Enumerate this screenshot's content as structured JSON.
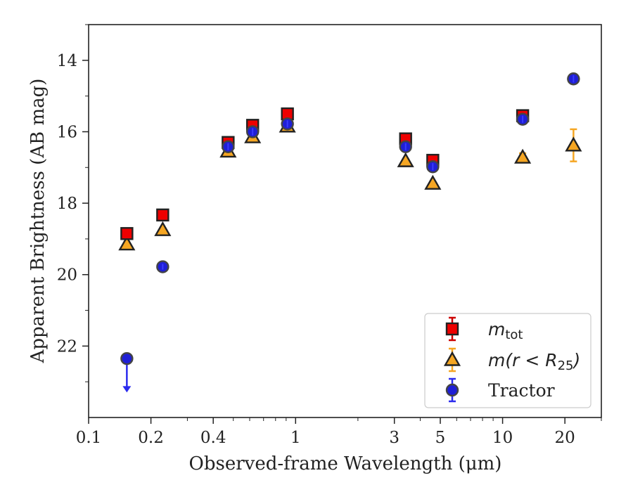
{
  "chart_data": {
    "type": "scatter",
    "xscale": "log",
    "yaxis_inverted": true,
    "xlim": [
      0.1,
      30
    ],
    "ylim": [
      24.0,
      13.0
    ],
    "xlabel": "Observed-frame Wavelength (μm)",
    "ylabel": "Apparent Brightness (AB mag)",
    "x_ticks": [
      {
        "value": 0.1,
        "label": "0.1"
      },
      {
        "value": 0.2,
        "label": "0.2"
      },
      {
        "value": 0.4,
        "label": "0.4"
      },
      {
        "value": 1,
        "label": "1"
      },
      {
        "value": 3,
        "label": "3"
      },
      {
        "value": 5,
        "label": "5"
      },
      {
        "value": 10,
        "label": "10"
      },
      {
        "value": 20,
        "label": "20"
      }
    ],
    "x_minor_ticks": [
      0.3,
      0.5,
      0.6,
      0.7,
      0.8,
      0.9,
      2,
      4,
      6,
      7,
      8,
      9,
      30
    ],
    "y_ticks": [
      {
        "value": 14,
        "label": "14"
      },
      {
        "value": 16,
        "label": "16"
      },
      {
        "value": 18,
        "label": "18"
      },
      {
        "value": 20,
        "label": "20"
      },
      {
        "value": 22,
        "label": "22"
      }
    ],
    "y_minor_ticks": [
      13,
      15,
      17,
      19,
      21,
      23
    ],
    "legend_position": "lower right",
    "series": [
      {
        "name_parts": [
          "m",
          "tot"
        ],
        "marker": "square",
        "color": "#ee0000",
        "errcolor": "#cc0000",
        "points": [
          {
            "x": 0.153,
            "y": 18.85,
            "err": 0.05
          },
          {
            "x": 0.228,
            "y": 18.33,
            "err": 0.05
          },
          {
            "x": 0.472,
            "y": 16.3,
            "err": 0.05
          },
          {
            "x": 0.62,
            "y": 15.82,
            "err": 0.05
          },
          {
            "x": 0.913,
            "y": 15.5,
            "err": 0.05
          },
          {
            "x": 3.4,
            "y": 16.2,
            "err": 0.05
          },
          {
            "x": 4.6,
            "y": 16.8,
            "err": 0.05
          },
          {
            "x": 12.5,
            "y": 15.55,
            "err": 0.1
          }
        ]
      },
      {
        "name_parts": [
          "m(r < R",
          "25",
          ")"
        ],
        "marker": "triangle",
        "color": "#f5a623",
        "errcolor": "#f5a623",
        "points": [
          {
            "x": 0.153,
            "y": 19.15,
            "err": 0.05
          },
          {
            "x": 0.228,
            "y": 18.75,
            "err": 0.05
          },
          {
            "x": 0.472,
            "y": 16.55,
            "err": 0.05
          },
          {
            "x": 0.62,
            "y": 16.15,
            "err": 0.05
          },
          {
            "x": 0.913,
            "y": 15.85,
            "err": 0.05
          },
          {
            "x": 3.4,
            "y": 16.82,
            "err": 0.05
          },
          {
            "x": 4.6,
            "y": 17.45,
            "err": 0.05
          },
          {
            "x": 12.5,
            "y": 16.72,
            "err": 0.12
          },
          {
            "x": 22.0,
            "y": 16.38,
            "err": 0.45
          }
        ]
      },
      {
        "name": "Tractor",
        "marker": "circle",
        "color": "#1f1fd6",
        "errcolor": "#2b2bee",
        "points": [
          {
            "x": 0.153,
            "y": 22.35,
            "upper_limit": true,
            "arrow_to": 23.3
          },
          {
            "x": 0.228,
            "y": 19.78,
            "err": 0.08
          },
          {
            "x": 0.472,
            "y": 16.42,
            "err": 0.1
          },
          {
            "x": 0.62,
            "y": 16.0,
            "err": 0.1
          },
          {
            "x": 0.913,
            "y": 15.78,
            "err": 0.1
          },
          {
            "x": 3.4,
            "y": 16.42,
            "err": 0.1
          },
          {
            "x": 4.6,
            "y": 16.98,
            "err": 0.1
          },
          {
            "x": 12.5,
            "y": 15.65,
            "err": 0.1
          },
          {
            "x": 22.0,
            "y": 14.52,
            "err": 0.1
          }
        ]
      }
    ]
  }
}
